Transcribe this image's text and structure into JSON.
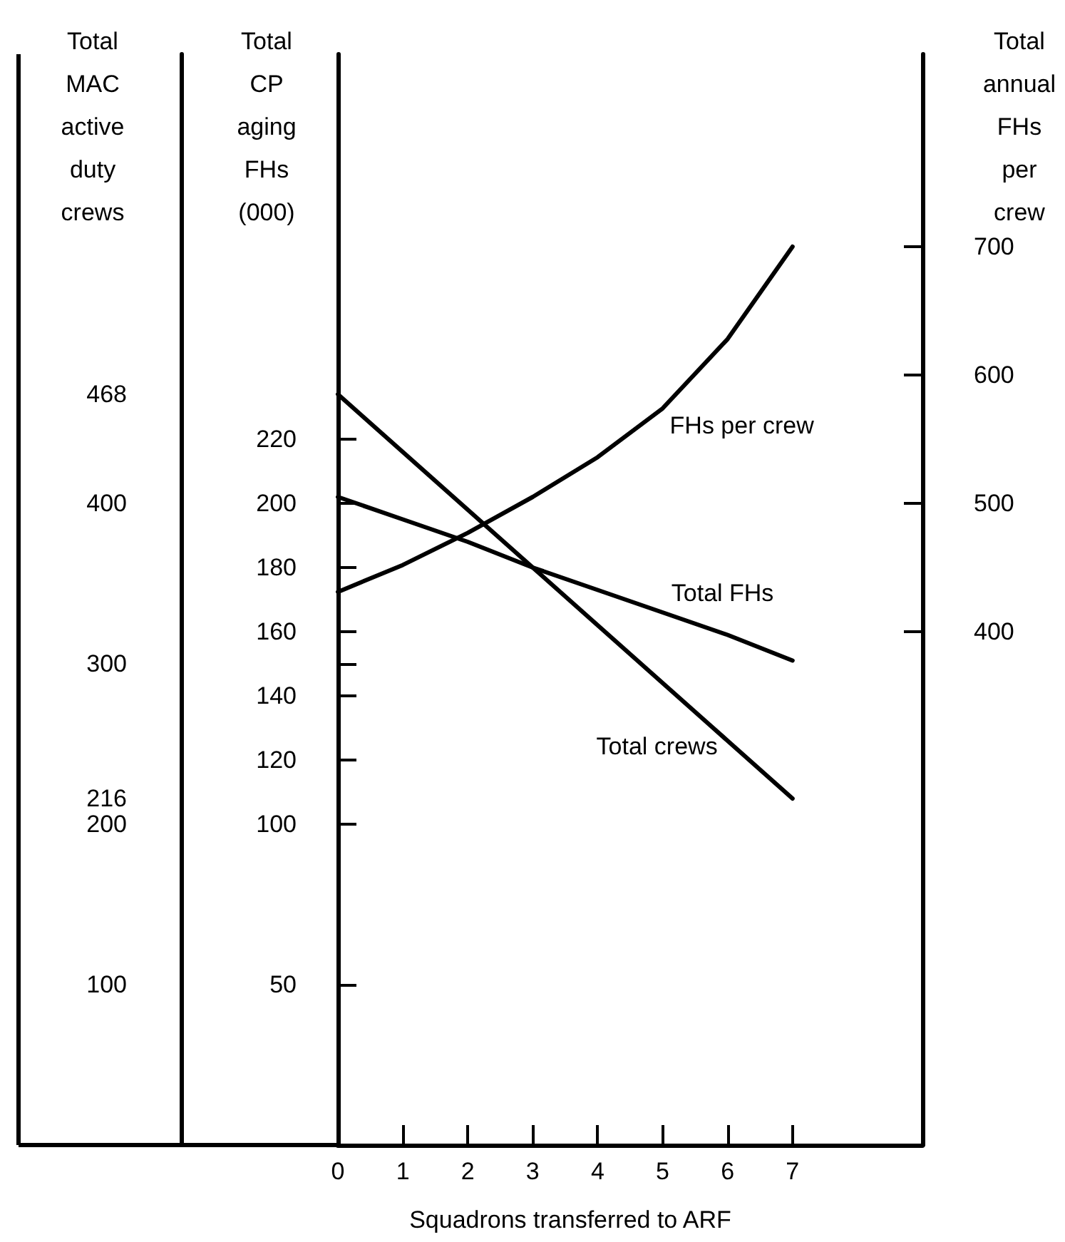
{
  "chart_data": {
    "type": "line",
    "xlabel": "Squadrons transferred to ARF",
    "ylabel": "Total CP aging FHs (000)",
    "y2label": "Total annual FHs per crew",
    "y3label": "Total MAC active duty crews",
    "x": [
      0,
      1,
      2,
      3,
      4,
      5,
      6,
      7
    ],
    "series": [
      {
        "name": "Total crews",
        "color": "#000000",
        "axis": "y3",
        "values": [
          468,
          432,
          396,
          360,
          324,
          288,
          252,
          216
        ]
      },
      {
        "name": "Total FHs",
        "color": "#000000",
        "values": [
          202,
          195,
          188,
          180,
          173,
          166,
          159,
          151
        ]
      },
      {
        "name": "FHs per crew",
        "color": "#000000",
        "axis": "y2",
        "values": [
          431,
          452,
          477,
          505,
          536,
          574,
          628,
          700
        ]
      }
    ],
    "xlim": [
      0,
      9
    ],
    "xticks": [
      0,
      1,
      2,
      3,
      4,
      5,
      6,
      7
    ],
    "ylim": [
      0,
      340
    ],
    "yticks": [
      50,
      100,
      120,
      140,
      {
        "value": 150,
        "label": null
      },
      160,
      180,
      200,
      220
    ],
    "y2lim": [
      0,
      850
    ],
    "y2ticks": [
      400,
      500,
      600,
      700
    ],
    "y3lim": [
      0,
      680
    ],
    "y3ticks": [
      100,
      200,
      216,
      300,
      400,
      468
    ],
    "marker": "none",
    "line_style": "solid"
  }
}
